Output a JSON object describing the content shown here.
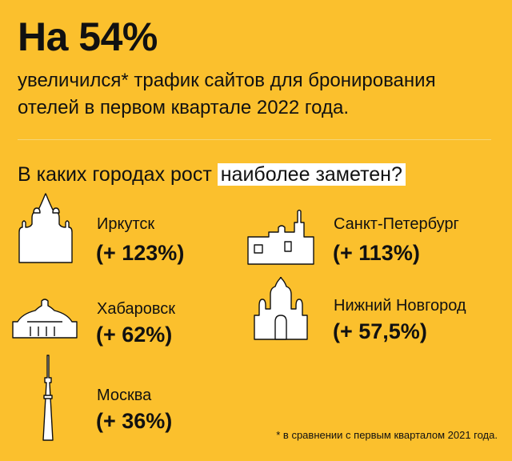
{
  "headline": "На 54%",
  "subtitle": "увеличился* трафик сайтов для бронирования отелей в первом квартале 2022 года.",
  "question": {
    "prefix": "В каких городах рост",
    "highlight": "наиболее заметен?"
  },
  "cities": [
    {
      "name": "Иркутск",
      "growth": "(+ 123%)",
      "icon": "cathedral-domes-icon"
    },
    {
      "name": "Санкт-Петербург",
      "growth": "(+ 113%)",
      "icon": "fortress-spire-icon"
    },
    {
      "name": "Хабаровск",
      "growth": "(+ 62%)",
      "icon": "dome-building-icon"
    },
    {
      "name": "Нижний Новгород",
      "growth": "(+ 57,5%)",
      "icon": "church-onion-domes-icon"
    },
    {
      "name": "Москва",
      "growth": "(+ 36%)",
      "icon": "tv-tower-icon"
    }
  ],
  "footnote": "* в сравнении с первым кварталом 2021 года.",
  "colors": {
    "background": "#FBC02D",
    "text": "#111111",
    "highlight": "#FFFFFF"
  }
}
